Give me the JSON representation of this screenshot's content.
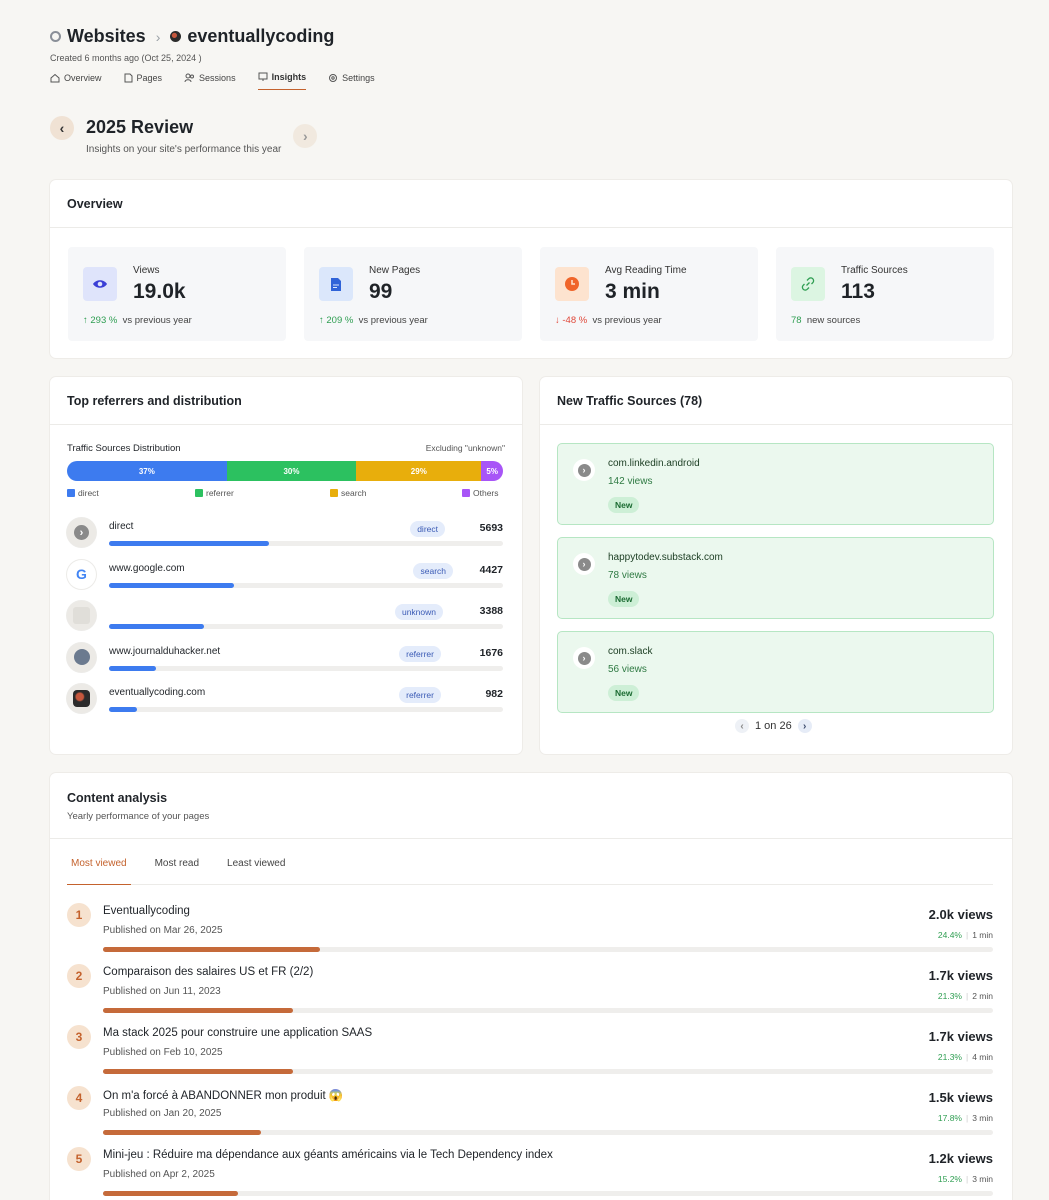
{
  "breadcrumb": {
    "root": "Websites",
    "site": "eventuallycoding"
  },
  "created": "Created 6 months ago (Oct 25, 2024 )",
  "tabs": [
    {
      "label": "Overview"
    },
    {
      "label": "Pages"
    },
    {
      "label": "Sessions"
    },
    {
      "label": "Insights"
    },
    {
      "label": "Settings"
    }
  ],
  "review": {
    "title": "2025 Review",
    "subtitle": "Insights on your site's performance this year"
  },
  "overview": {
    "title": "Overview",
    "stats": [
      {
        "label": "Views",
        "value": "19.0k",
        "change": "293 %",
        "suffix": "vs previous year",
        "dir": "up",
        "arrow": "↑",
        "icon": "eye-icon"
      },
      {
        "label": "New Pages",
        "value": "99",
        "change": "209 %",
        "suffix": "vs previous year",
        "dir": "up",
        "arrow": "↑",
        "icon": "document-icon"
      },
      {
        "label": "Avg Reading Time",
        "value": "3 min",
        "change": "-48 %",
        "suffix": "vs previous year",
        "dir": "down",
        "arrow": "↓",
        "icon": "clock-icon"
      },
      {
        "label": "Traffic Sources",
        "value": "113",
        "change": "78",
        "suffix": "new sources",
        "dir": "up",
        "arrow": "",
        "icon": "link-icon"
      }
    ]
  },
  "referrers": {
    "title": "Top referrers and distribution",
    "dist_title": "Traffic Sources Distribution",
    "dist_note": "Excluding \"unknown\"",
    "distribution": [
      {
        "label": "direct",
        "pct": "37%",
        "value": 37,
        "color": "#3d7bef"
      },
      {
        "label": "referrer",
        "pct": "30%",
        "value": 30,
        "color": "#2cc160"
      },
      {
        "label": "search",
        "pct": "29%",
        "value": 29,
        "color": "#e8ae0c"
      },
      {
        "label": "Others",
        "pct": "5%",
        "value": 5,
        "color": "#a855f7"
      }
    ],
    "items": [
      {
        "name": "direct",
        "tag": "direct",
        "count": "5693",
        "value": 5693
      },
      {
        "name": "www.google.com",
        "tag": "search",
        "count": "4427",
        "value": 4427
      },
      {
        "name": "",
        "tag": "unknown",
        "count": "3388",
        "value": 3388
      },
      {
        "name": "www.journalduhacker.net",
        "tag": "referrer",
        "count": "1676",
        "value": 1676
      },
      {
        "name": "eventuallycoding.com",
        "tag": "referrer",
        "count": "982",
        "value": 982
      }
    ]
  },
  "traffic": {
    "title": "New Traffic Sources (78)",
    "sources": [
      {
        "domain": "com.linkedin.android",
        "views": "142 views",
        "badge": "New"
      },
      {
        "domain": "happytodev.substack.com",
        "views": "78 views",
        "badge": "New"
      },
      {
        "domain": "com.slack",
        "views": "56 views",
        "badge": "New"
      }
    ],
    "pager": "1 on 26"
  },
  "content": {
    "title": "Content analysis",
    "subtitle": "Yearly performance of your pages",
    "tabs": [
      {
        "label": "Most viewed"
      },
      {
        "label": "Most read"
      },
      {
        "label": "Least viewed"
      }
    ],
    "pages": [
      {
        "rank": "1",
        "title": "Eventuallycoding",
        "published": "Published on Mar 26, 2025",
        "views": "2.0k views",
        "pct": "24.4%",
        "time": "1 min",
        "share": 24.4
      },
      {
        "rank": "2",
        "title": "Comparaison des salaires US et FR (2/2)",
        "published": "Published on Jun 11, 2023",
        "views": "1.7k views",
        "pct": "21.3%",
        "time": "2 min",
        "share": 21.3
      },
      {
        "rank": "3",
        "title": "Ma stack 2025 pour construire une application SAAS",
        "published": "Published on Feb 10, 2025",
        "views": "1.7k views",
        "pct": "21.3%",
        "time": "4 min",
        "share": 21.3
      },
      {
        "rank": "4",
        "title": "On m'a forcé à ABANDONNER mon produit 😱",
        "published": "Published on Jan 20, 2025",
        "views": "1.5k views",
        "pct": "17.8%",
        "time": "3 min",
        "share": 17.8
      },
      {
        "rank": "5",
        "title": "Mini-jeu : Réduire ma dépendance aux géants américains via le Tech Dependency index",
        "published": "Published on Apr 2, 2025",
        "views": "1.2k views",
        "pct": "15.2%",
        "time": "3 min",
        "share": 15.2
      }
    ]
  }
}
